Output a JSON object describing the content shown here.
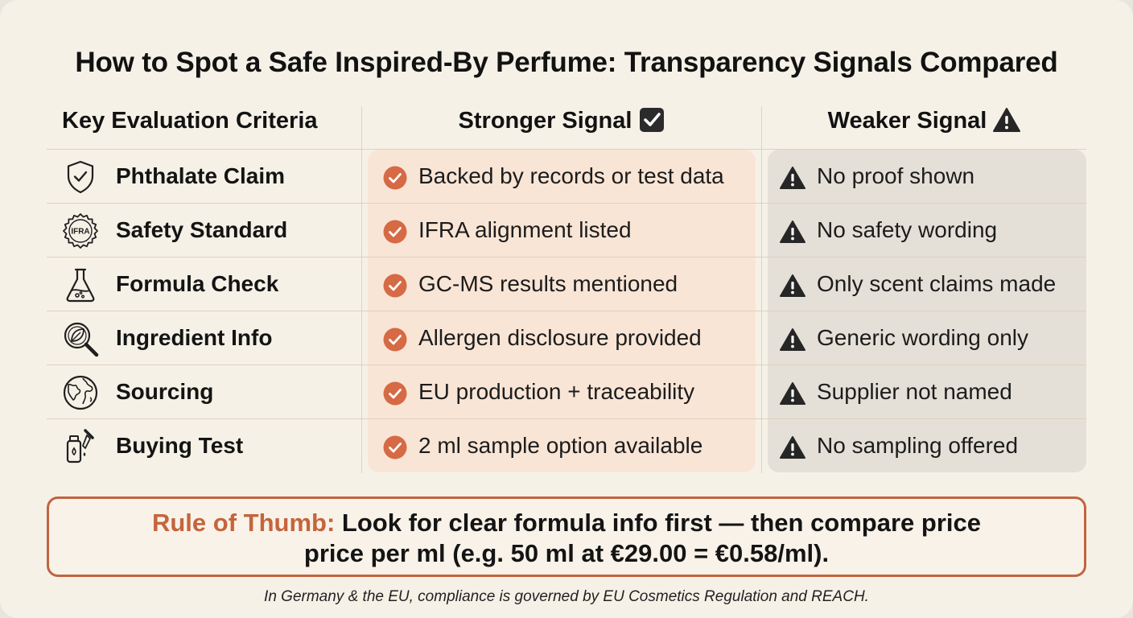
{
  "title": "How to Spot a Safe Inspired-By Perfume: Transparency Signals Compared",
  "headers": {
    "criteria": "Key Evaluation Criteria",
    "stronger": "Stronger Signal",
    "weaker": "Weaker Signal"
  },
  "rows": [
    {
      "icon": "shield-check-icon",
      "criterion": "Phthalate Claim",
      "stronger": "Backed by records or test data",
      "weaker": "No proof shown"
    },
    {
      "icon": "ifra-seal-icon",
      "icon_text": "IFRA",
      "criterion": "Safety Standard",
      "stronger": "IFRA alignment listed",
      "weaker": "No safety wording"
    },
    {
      "icon": "flask-icon",
      "criterion": "Formula Check",
      "stronger": "GC-MS results mentioned",
      "weaker": "Only scent claims made"
    },
    {
      "icon": "magnifier-leaf-icon",
      "criterion": "Ingredient Info",
      "stronger": "Allergen disclosure provided",
      "weaker": "Generic wording only"
    },
    {
      "icon": "globe-icon",
      "criterion": "Sourcing",
      "stronger": "EU production + traceability",
      "weaker": "Supplier not named"
    },
    {
      "icon": "dropper-bottle-icon",
      "criterion": "Buying Test",
      "stronger": "2 ml sample option available",
      "weaker": "No sampling offered"
    }
  ],
  "rule": {
    "lead": "Rule of Thumb:",
    "line1": "Look for clear formula info first — then compare price",
    "line2": "price per ml (e.g. 50 ml at €29.00 = €0.58/ml)."
  },
  "footnote": "In Germany & the EU, compliance is governed by EU Cosmetics Regulation and REACH.",
  "colors": {
    "accent": "#c5643c",
    "check": "#d56a44",
    "strong_bg": "#f9e5d6",
    "weak_bg": "#e5e0d7",
    "background": "#f6f1e7"
  }
}
